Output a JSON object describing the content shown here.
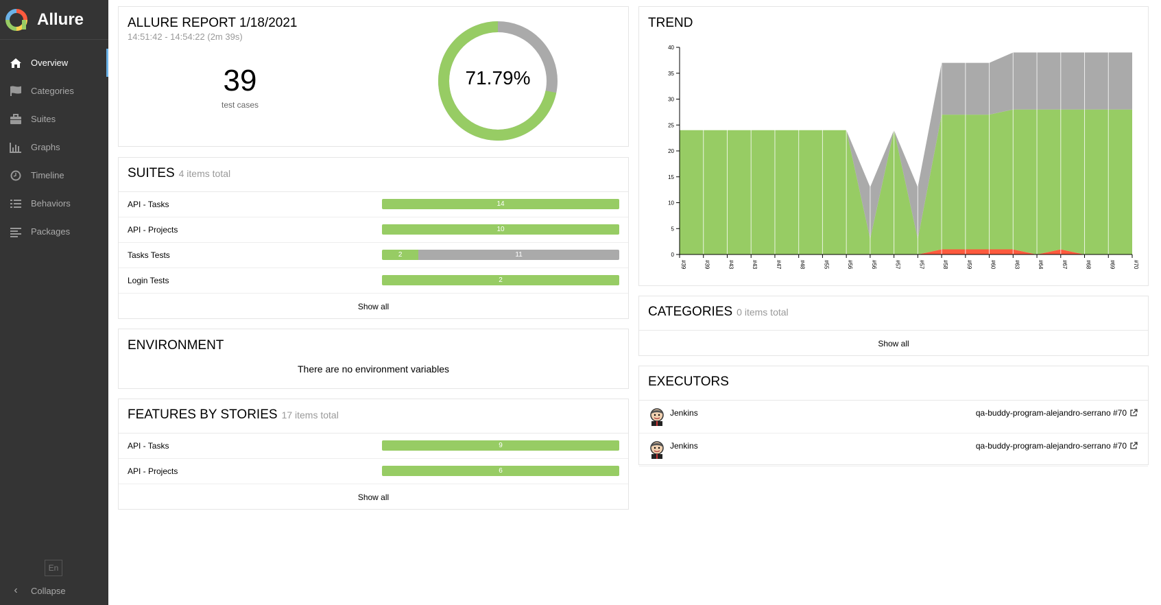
{
  "app": {
    "name": "Allure"
  },
  "nav": {
    "items": [
      {
        "label": "Overview",
        "icon": "home-icon"
      },
      {
        "label": "Categories",
        "icon": "flag-icon"
      },
      {
        "label": "Suites",
        "icon": "briefcase-icon"
      },
      {
        "label": "Graphs",
        "icon": "bar-chart-icon"
      },
      {
        "label": "Timeline",
        "icon": "clock-icon"
      },
      {
        "label": "Behaviors",
        "icon": "list-icon"
      },
      {
        "label": "Packages",
        "icon": "align-left-icon"
      }
    ],
    "language": "En",
    "collapse": "Collapse"
  },
  "summary": {
    "title": "ALLURE REPORT 1/18/2021",
    "time_range": "14:51:42 - 14:54:22 (2m 39s)",
    "test_count": "39",
    "test_count_label": "test cases",
    "success_rate": "71.79%",
    "passed_fraction": 0.7179
  },
  "suites": {
    "title": "SUITES",
    "subtitle": "4 items total",
    "rows": [
      {
        "name": "API - Tasks",
        "passed": 14,
        "unknown": 0
      },
      {
        "name": "API - Projects",
        "passed": 10,
        "unknown": 0
      },
      {
        "name": "Tasks Tests",
        "passed": 2,
        "unknown": 11
      },
      {
        "name": "Login Tests",
        "passed": 2,
        "unknown": 0
      }
    ],
    "show_all": "Show all"
  },
  "environment": {
    "title": "ENVIRONMENT",
    "empty": "There are no environment variables"
  },
  "features": {
    "title": "FEATURES BY STORIES",
    "subtitle": "17 items total",
    "rows": [
      {
        "name": "API - Tasks",
        "passed": 9,
        "unknown": 0
      },
      {
        "name": "API - Projects",
        "passed": 6,
        "unknown": 0
      }
    ],
    "show_all": "Show all"
  },
  "trend": {
    "title": "TREND"
  },
  "chart_data": {
    "type": "area",
    "title": "TREND",
    "x": [
      "#39",
      "#39",
      "#43",
      "#43",
      "#47",
      "#48",
      "#55",
      "#56",
      "#56",
      "#57",
      "#57",
      "#58",
      "#59",
      "#60",
      "#63",
      "#64",
      "#67",
      "#68",
      "#69",
      "#70"
    ],
    "ylim": [
      0,
      40
    ],
    "yticks": [
      0,
      5,
      10,
      15,
      20,
      25,
      30,
      35,
      40
    ],
    "series": [
      {
        "name": "failed",
        "color": "#fd5a3e",
        "values": [
          0,
          0,
          0,
          0,
          0,
          0,
          0,
          0,
          0,
          0,
          0,
          1,
          1,
          1,
          1,
          0,
          1,
          0,
          0,
          0
        ]
      },
      {
        "name": "passed",
        "color": "#97cc64",
        "values": [
          24,
          24,
          24,
          24,
          24,
          24,
          24,
          24,
          3,
          24,
          3,
          26,
          26,
          26,
          27,
          28,
          27,
          28,
          28,
          28
        ]
      },
      {
        "name": "unknown",
        "color": "#aaaaaa",
        "values": [
          0,
          0,
          0,
          0,
          0,
          0,
          0,
          0,
          10,
          0,
          10,
          10,
          10,
          10,
          11,
          11,
          11,
          11,
          11,
          11
        ]
      }
    ]
  },
  "categories": {
    "title": "CATEGORIES",
    "subtitle": "0 items total",
    "show_all": "Show all"
  },
  "executors": {
    "title": "EXECUTORS",
    "rows": [
      {
        "name": "Jenkins",
        "build": "qa-buddy-program-alejandro-serrano #70"
      },
      {
        "name": "Jenkins",
        "build": "qa-buddy-program-alejandro-serrano #70"
      }
    ]
  },
  "colors": {
    "passed": "#97cc64",
    "unknown": "#aaaaaa",
    "failed": "#fd5a3e",
    "accent": "#6bb2e8",
    "sidebar": "#343434"
  }
}
